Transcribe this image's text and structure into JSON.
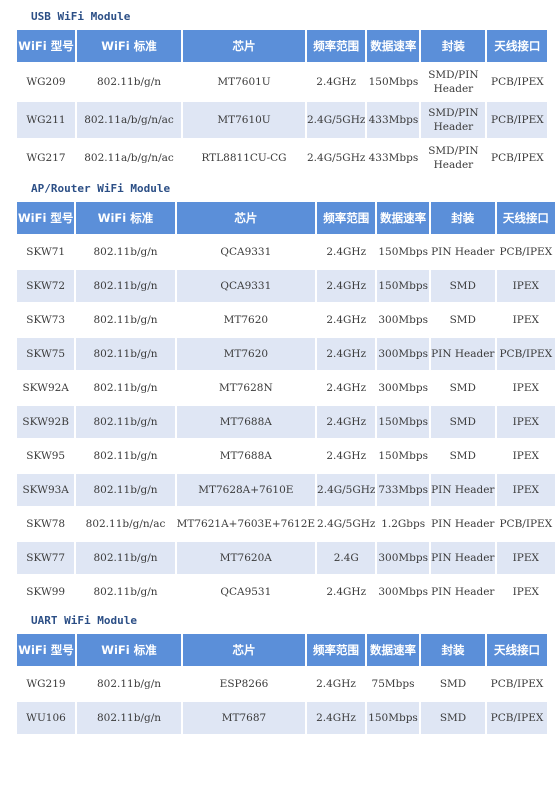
{
  "headers": [
    "WiFi 型号",
    "WiFi 标准",
    "芯片",
    "频率范围",
    "数据速率",
    "封装",
    "天线接口"
  ],
  "sections": [
    {
      "title": "USB WiFi Module",
      "rows": [
        [
          "WG209",
          "802.11b/g/n",
          "MT7601U",
          "2.4GHz",
          "150Mbps",
          "SMD/PIN Header",
          "PCB/IPEX"
        ],
        [
          "WG211",
          "802.11a/b/g/n/ac",
          "MT7610U",
          "2.4G/5GHz",
          "433Mbps",
          "SMD/PIN Header",
          "PCB/IPEX"
        ],
        [
          "WG217",
          "802.11a/b/g/n/ac",
          "RTL8811CU-CG",
          "2.4G/5GHz",
          "433Mbps",
          "SMD/PIN Header",
          "PCB/IPEX"
        ]
      ]
    },
    {
      "title": "AP/Router WiFi Module",
      "rows": [
        [
          "SKW71",
          "802.11b/g/n",
          "QCA9331",
          "2.4GHz",
          "150Mbps",
          "PIN Header",
          "PCB/IPEX"
        ],
        [
          "SKW72",
          "802.11b/g/n",
          "QCA9331",
          "2.4GHz",
          "150Mbps",
          "SMD",
          "IPEX"
        ],
        [
          "SKW73",
          "802.11b/g/n",
          "MT7620",
          "2.4GHz",
          "300Mbps",
          "SMD",
          "IPEX"
        ],
        [
          "SKW75",
          "802.11b/g/n",
          "MT7620",
          "2.4GHz",
          "300Mbps",
          "PIN Header",
          "PCB/IPEX"
        ],
        [
          "SKW92A",
          "802.11b/g/n",
          "MT7628N",
          "2.4GHz",
          "300Mbps",
          "SMD",
          "IPEX"
        ],
        [
          "SKW92B",
          "802.11b/g/n",
          "MT7688A",
          "2.4GHz",
          "150Mbps",
          "SMD",
          "IPEX"
        ],
        [
          "SKW95",
          "802.11b/g/n",
          "MT7688A",
          "2.4GHz",
          "150Mbps",
          "SMD",
          "IPEX"
        ],
        [
          "SKW93A",
          "802.11b/g/n",
          "MT7628A+7610E",
          "2.4G/5GHz",
          "733Mbps",
          "PIN Header",
          "IPEX"
        ],
        [
          "SKW78",
          "802.11b/g/n/ac",
          "MT7621A+7603E+7612E",
          "2.4G/5GHz",
          "1.2Gbps",
          "PIN Header",
          "PCB/IPEX"
        ],
        [
          "SKW77",
          "802.11b/g/n",
          "MT7620A",
          "2.4G",
          "300Mbps",
          "PIN Header",
          "IPEX"
        ],
        [
          "SKW99",
          "802.11b/g/n",
          "QCA9531",
          "2.4GHz",
          "300Mbps",
          "PIN Header",
          "IPEX"
        ]
      ]
    },
    {
      "title": "UART WiFi Module",
      "rows": [
        [
          "WG219",
          "802.11b/g/n",
          "ESP8266",
          "2.4GHz",
          "75Mbps",
          "SMD",
          "PCB/IPEX"
        ],
        [
          "WU106",
          "802.11b/g/n",
          "MT7687",
          "2.4GHz",
          "150Mbps",
          "SMD",
          "PCB/IPEX"
        ]
      ]
    }
  ]
}
